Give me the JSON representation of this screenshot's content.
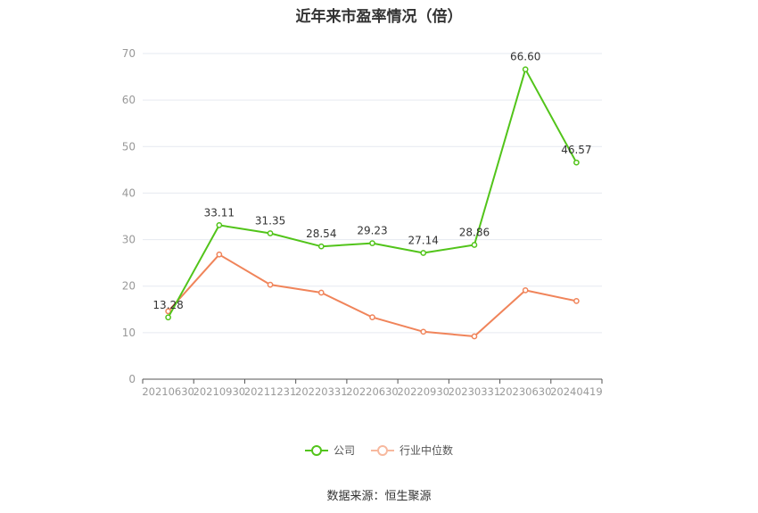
{
  "chart_data": {
    "type": "line",
    "title": "近年来市盈率情况（倍）",
    "categories": [
      "20210630",
      "20210930",
      "20211231",
      "20220331",
      "20220630",
      "20220930",
      "20230331",
      "20230630",
      "20240419"
    ],
    "ylim": [
      0,
      70
    ],
    "yticks": [
      0,
      10,
      20,
      30,
      40,
      50,
      60,
      70
    ],
    "grid": true,
    "legend_position": "bottom",
    "series": [
      {
        "name": "公司",
        "color": "#52c41a",
        "values": [
          13.28,
          33.11,
          31.35,
          28.54,
          29.23,
          27.14,
          28.86,
          66.6,
          46.57
        ],
        "labels": [
          "13.28",
          "33.11",
          "31.35",
          "28.54",
          "29.23",
          "27.14",
          "28.86",
          "66.60",
          "46.57"
        ]
      },
      {
        "name": "行业中位数",
        "color": "#f0845a",
        "values": [
          14.6,
          26.8,
          20.3,
          18.6,
          13.3,
          10.2,
          9.2,
          19.1,
          16.8
        ]
      }
    ]
  },
  "source": "数据来源：恒生聚源"
}
